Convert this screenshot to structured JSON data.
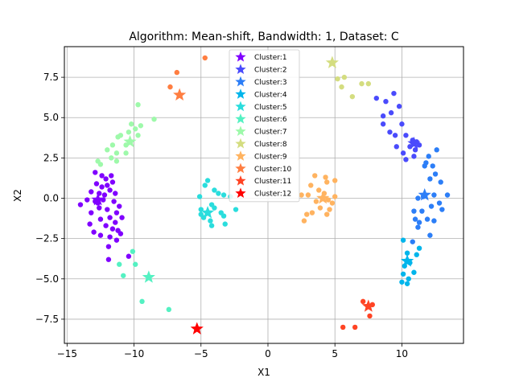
{
  "chart_data": {
    "type": "scatter",
    "title": "Algorithm: Mean-shift, Bandwidth: 1, Dataset: C",
    "xlabel": "X1",
    "ylabel": "X2",
    "xlim": [
      -15.2,
      14.6
    ],
    "ylim": [
      -9.0,
      9.4
    ],
    "xticks": [
      -15,
      -10,
      -5,
      0,
      5,
      10
    ],
    "yticks": [
      -7.5,
      -5.0,
      -2.5,
      0.0,
      2.5,
      5.0,
      7.5
    ],
    "xtick_labels": [
      "−15",
      "−10",
      "−5",
      "0",
      "5",
      "10"
    ],
    "ytick_labels": [
      "−7.5",
      "−5.0",
      "−2.5",
      "0.0",
      "2.5",
      "5.0",
      "7.5"
    ],
    "grid": true,
    "legend_position": "top-center",
    "series": [
      {
        "name": "Cluster:1",
        "color": "#8000ff",
        "center": [
          -12.7,
          -0.1
        ],
        "points": [
          [
            -12.9,
            1.6
          ],
          [
            -12.4,
            1.4
          ],
          [
            -12.1,
            1.2
          ],
          [
            -11.7,
            1.4
          ],
          [
            -12.8,
            0.9
          ],
          [
            -12.4,
            0.7
          ],
          [
            -12.0,
            0.8
          ],
          [
            -11.6,
            1.0
          ],
          [
            -13.2,
            0.4
          ],
          [
            -12.6,
            0.3
          ],
          [
            -12.2,
            0.2
          ],
          [
            -11.8,
            0.5
          ],
          [
            -11.4,
            0.3
          ],
          [
            -13.5,
            -0.1
          ],
          [
            -12.9,
            -0.2
          ],
          [
            -12.3,
            -0.1
          ],
          [
            -11.5,
            -0.2
          ],
          [
            -11.1,
            -0.5
          ],
          [
            -14.0,
            -0.4
          ],
          [
            -12.6,
            -0.6
          ],
          [
            -12.0,
            -0.7
          ],
          [
            -11.3,
            -0.9
          ],
          [
            -13.2,
            -0.9
          ],
          [
            -12.5,
            -1.3
          ],
          [
            -11.8,
            -1.2
          ],
          [
            -10.9,
            -1.2
          ],
          [
            -13.3,
            -1.6
          ],
          [
            -12.1,
            -1.7
          ],
          [
            -11.6,
            -1.9
          ],
          [
            -11.2,
            -2.0
          ],
          [
            -13.0,
            -2.1
          ],
          [
            -12.5,
            -2.3
          ],
          [
            -11.8,
            -2.4
          ],
          [
            -11.3,
            -2.6
          ],
          [
            -11.9,
            -3.0
          ],
          [
            -11.0,
            -2.2
          ],
          [
            -11.9,
            -3.8
          ],
          [
            -10.4,
            -3.6
          ],
          [
            -11.4,
            -1.5
          ],
          [
            -12.7,
            -0.3
          ]
        ]
      },
      {
        "name": "Cluster:2",
        "color": "#4a4bfc",
        "center": [
          10.9,
          3.4
        ],
        "points": [
          [
            8.1,
            6.2
          ],
          [
            8.8,
            6.0
          ],
          [
            9.4,
            6.5
          ],
          [
            9.8,
            5.7
          ],
          [
            9.2,
            5.3
          ],
          [
            8.6,
            5.1
          ],
          [
            8.6,
            4.6
          ],
          [
            9.1,
            4.1
          ],
          [
            10.0,
            4.6
          ],
          [
            9.5,
            3.9
          ],
          [
            10.3,
            3.9
          ],
          [
            10.8,
            3.6
          ],
          [
            11.1,
            3.5
          ],
          [
            10.6,
            3.2
          ],
          [
            11.0,
            3.0
          ],
          [
            9.6,
            3.2
          ],
          [
            10.1,
            2.8
          ],
          [
            10.9,
            2.6
          ],
          [
            11.3,
            3.3
          ],
          [
            10.3,
            2.4
          ]
        ]
      },
      {
        "name": "Cluster:3",
        "color": "#2c7ef7",
        "center": [
          11.7,
          0.2
        ],
        "points": [
          [
            11.8,
            2.2
          ],
          [
            12.3,
            2.0
          ],
          [
            12.0,
            2.6
          ],
          [
            11.7,
            2.0
          ],
          [
            12.5,
            1.5
          ],
          [
            12.1,
            1.2
          ],
          [
            12.9,
            1.0
          ],
          [
            12.4,
            0.2
          ],
          [
            11.6,
            0.1
          ],
          [
            11.2,
            0.0
          ],
          [
            13.4,
            0.2
          ],
          [
            12.8,
            -0.3
          ],
          [
            12.2,
            -0.5
          ],
          [
            11.5,
            -0.8
          ],
          [
            10.9,
            -0.8
          ],
          [
            11.0,
            -1.3
          ],
          [
            11.9,
            -1.3
          ],
          [
            12.4,
            -1.4
          ],
          [
            11.3,
            -1.5
          ],
          [
            12.1,
            -2.3
          ],
          [
            10.8,
            -2.7
          ],
          [
            11.2,
            -1.8
          ],
          [
            13.0,
            -0.7
          ],
          [
            12.6,
            3.0
          ]
        ]
      },
      {
        "name": "Cluster:4",
        "color": "#00b5eb",
        "center": [
          10.4,
          -3.9
        ],
        "points": [
          [
            10.1,
            -2.6
          ],
          [
            10.4,
            -3.4
          ],
          [
            10.2,
            -4.2
          ],
          [
            10.6,
            -4.0
          ],
          [
            10.1,
            -4.7
          ],
          [
            10.9,
            -4.6
          ],
          [
            11.1,
            -3.5
          ],
          [
            10.5,
            -5.0
          ],
          [
            10.0,
            -5.2
          ],
          [
            11.3,
            -3.1
          ],
          [
            10.4,
            -5.3
          ]
        ]
      },
      {
        "name": "Cluster:5",
        "color": "#2adddd",
        "center": [
          -4.5,
          -0.9
        ],
        "points": [
          [
            -5.1,
            0.1
          ],
          [
            -4.7,
            0.8
          ],
          [
            -4.5,
            1.1
          ],
          [
            -4.0,
            0.5
          ],
          [
            -3.7,
            0.3
          ],
          [
            -3.3,
            0.2
          ],
          [
            -2.8,
            0.1
          ],
          [
            -5.0,
            -0.7
          ],
          [
            -4.2,
            -0.4
          ],
          [
            -4.0,
            -0.6
          ],
          [
            -3.5,
            -0.9
          ],
          [
            -4.8,
            -1.2
          ],
          [
            -4.3,
            -1.4
          ],
          [
            -3.3,
            -1.1
          ],
          [
            -4.2,
            -1.7
          ],
          [
            -3.2,
            -1.6
          ],
          [
            -2.4,
            -0.7
          ],
          [
            -5.0,
            -1.0
          ]
        ]
      },
      {
        "name": "Cluster:6",
        "color": "#54f1c2",
        "center": [
          -8.9,
          -4.9
        ],
        "points": [
          [
            -11.1,
            -4.1
          ],
          [
            -10.1,
            -3.3
          ],
          [
            -10.8,
            -4.8
          ],
          [
            -9.9,
            -4.1
          ],
          [
            -9.4,
            -6.4
          ],
          [
            -7.4,
            -6.9
          ]
        ]
      },
      {
        "name": "Cluster:7",
        "color": "#9ef9aa",
        "center": [
          -10.3,
          3.5
        ],
        "points": [
          [
            -9.7,
            5.8
          ],
          [
            -8.5,
            4.9
          ],
          [
            -10.2,
            4.6
          ],
          [
            -9.9,
            4.3
          ],
          [
            -9.5,
            4.5
          ],
          [
            -10.4,
            4.1
          ],
          [
            -11.0,
            3.9
          ],
          [
            -11.2,
            3.8
          ],
          [
            -9.7,
            3.9
          ],
          [
            -10.6,
            3.3
          ],
          [
            -11.6,
            3.3
          ],
          [
            -12.0,
            3.0
          ],
          [
            -11.3,
            2.8
          ],
          [
            -10.6,
            2.8
          ],
          [
            -11.7,
            2.5
          ],
          [
            -11.3,
            2.3
          ],
          [
            -12.5,
            2.1
          ],
          [
            -12.7,
            2.3
          ]
        ]
      },
      {
        "name": "Cluster:8",
        "color": "#d4dd80",
        "center": [
          4.8,
          8.4
        ],
        "points": [
          [
            5.2,
            7.4
          ],
          [
            5.5,
            6.9
          ],
          [
            5.7,
            7.5
          ],
          [
            6.3,
            6.3
          ],
          [
            7.0,
            7.1
          ],
          [
            7.5,
            7.1
          ],
          [
            4.8,
            8.4
          ]
        ]
      },
      {
        "name": "Cluster:9",
        "color": "#ffb360",
        "center": [
          4.1,
          0.0
        ],
        "points": [
          [
            3.5,
            1.4
          ],
          [
            4.4,
            1.0
          ],
          [
            4.3,
            1.3
          ],
          [
            5.0,
            1.1
          ],
          [
            3.2,
            0.8
          ],
          [
            3.8,
            0.5
          ],
          [
            4.2,
            0.3
          ],
          [
            3.0,
            0.2
          ],
          [
            2.5,
            0.2
          ],
          [
            3.6,
            -0.2
          ],
          [
            4.5,
            -0.1
          ],
          [
            4.8,
            -0.3
          ],
          [
            3.9,
            -0.6
          ],
          [
            3.3,
            -0.9
          ],
          [
            4.4,
            -1.0
          ],
          [
            2.9,
            -1.0
          ],
          [
            2.7,
            -1.4
          ],
          [
            4.6,
            -0.7
          ],
          [
            5.0,
            0.1
          ]
        ]
      },
      {
        "name": "Cluster:10",
        "color": "#ff7e41",
        "center": [
          -6.6,
          6.4
        ],
        "points": [
          [
            -4.7,
            8.7
          ],
          [
            -6.8,
            7.8
          ],
          [
            -7.3,
            6.9
          ],
          [
            -6.6,
            6.4
          ]
        ]
      },
      {
        "name": "Cluster:11",
        "color": "#ff4424",
        "center": [
          7.5,
          -6.7
        ],
        "points": [
          [
            7.1,
            -6.4
          ],
          [
            7.6,
            -7.3
          ],
          [
            5.6,
            -8.0
          ],
          [
            6.5,
            -8.0
          ],
          [
            7.8,
            -6.6
          ]
        ]
      },
      {
        "name": "Cluster:12",
        "color": "#ff0000",
        "center": [
          -5.3,
          -8.1
        ],
        "points": []
      }
    ]
  }
}
